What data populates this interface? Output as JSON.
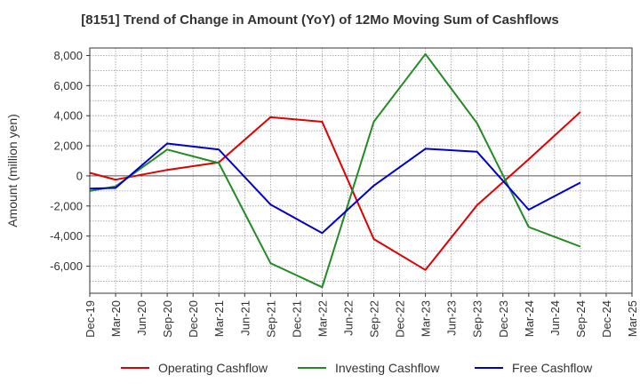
{
  "chart_data": {
    "type": "line",
    "title": "[8151]  Trend of Change in Amount (YoY) of 12Mo Moving Sum of Cashflows",
    "xlabel": "",
    "ylabel": "Amount (million yen)",
    "ylim": [
      -7800,
      8500
    ],
    "yticks": [
      8000,
      6000,
      4000,
      2000,
      0,
      -2000,
      -4000,
      -6000
    ],
    "ytick_labels": [
      "8,000",
      "6,000",
      "4,000",
      "2,000",
      "0",
      "-2,000",
      "-4,000",
      "-6,000"
    ],
    "categories": [
      "Dec-19",
      "Mar-20",
      "Jun-20",
      "Sep-20",
      "Dec-20",
      "Mar-21",
      "Jun-21",
      "Sep-21",
      "Dec-21",
      "Mar-22",
      "Jun-22",
      "Sep-22",
      "Dec-22",
      "Mar-23",
      "Jun-23",
      "Sep-23",
      "Dec-23",
      "Mar-24",
      "Jun-24",
      "Sep-24",
      "Dec-24",
      "Mar-25"
    ],
    "grid": true,
    "legend_position": "bottom",
    "series": [
      {
        "name": "Operating Cashflow",
        "color": "#e00000",
        "values": [
          200,
          -250,
          null,
          400,
          null,
          900,
          null,
          3900,
          null,
          3600,
          null,
          -4200,
          null,
          -6250,
          null,
          -1950,
          null,
          1100,
          null,
          4250,
          null,
          null
        ]
      },
      {
        "name": "Investing Cashflow",
        "color": "#228b22",
        "values": [
          -1000,
          -700,
          null,
          1750,
          null,
          850,
          null,
          -5800,
          null,
          -7400,
          null,
          3600,
          null,
          8100,
          null,
          3500,
          null,
          -3400,
          null,
          -4700,
          null,
          null
        ]
      },
      {
        "name": "Free Cashflow",
        "color": "#0000cc",
        "values": [
          -850,
          -800,
          null,
          2150,
          null,
          1750,
          null,
          -1900,
          null,
          -3800,
          null,
          -650,
          null,
          1800,
          null,
          1600,
          null,
          -2250,
          null,
          -450,
          null,
          null
        ]
      }
    ]
  }
}
